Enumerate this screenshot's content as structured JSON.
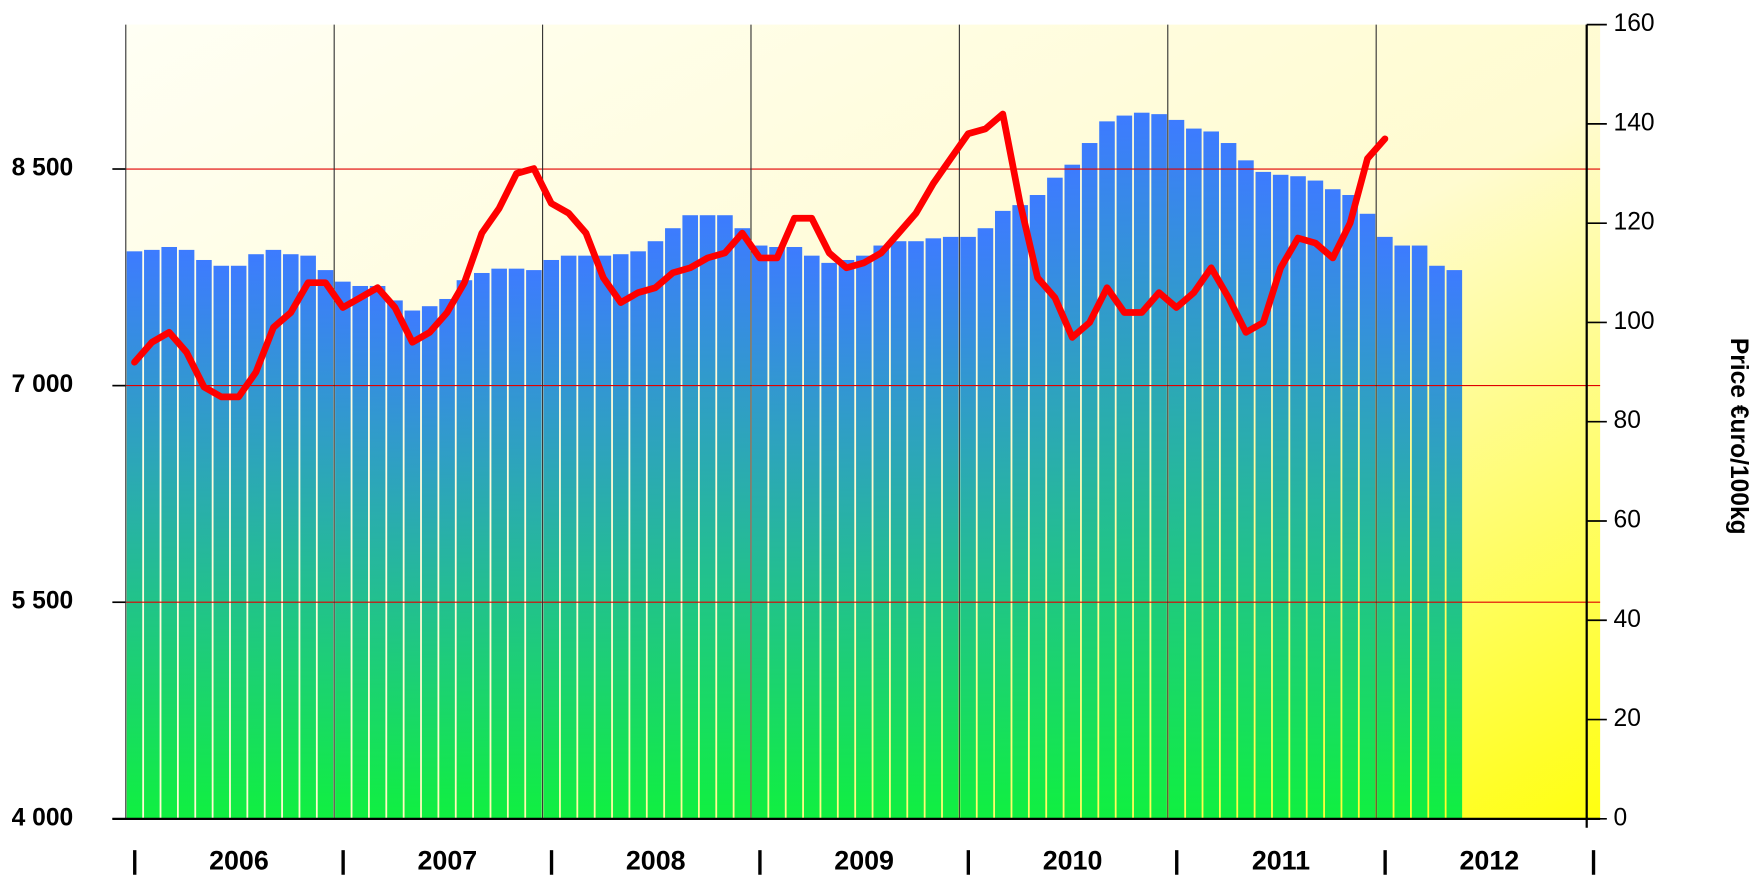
{
  "chart_data": {
    "type": "bar_line",
    "categories": [
      "2006",
      "2007",
      "2008",
      "2009",
      "2010",
      "2011",
      "2012"
    ],
    "series": [
      {
        "type": "bar",
        "color": [
          "#3d7bff",
          "#10f040"
        ],
        "values": [
          [
            7930,
            7940,
            7960,
            7940,
            7870,
            7830,
            7830,
            7910,
            7940,
            7910,
            7900,
            7800
          ],
          [
            7720,
            7690,
            7690,
            7590,
            7520,
            7550,
            7600,
            7730,
            7780,
            7810,
            7810,
            7800
          ],
          [
            7870,
            7900,
            7900,
            7900,
            7910,
            7930,
            8000,
            8090,
            8180,
            8180,
            8180,
            8090
          ],
          [
            7970,
            7960,
            7960,
            7900,
            7850,
            7870,
            7900,
            7970,
            8000,
            8000,
            8020,
            8030
          ],
          [
            8030,
            8090,
            8210,
            8250,
            8320,
            8440,
            8530,
            8680,
            8830,
            8870,
            8890,
            8880
          ],
          [
            8840,
            8780,
            8760,
            8680,
            8560,
            8480,
            8460,
            8450,
            8420,
            8360,
            8320,
            8190
          ],
          [
            8030,
            7970,
            7970,
            7830,
            7800
          ]
        ]
      },
      {
        "type": "line",
        "axis": "y2",
        "color": "#ff0000",
        "values": [
          [
            92,
            96,
            98,
            94,
            87,
            85,
            85,
            90,
            99,
            102,
            108,
            108
          ],
          [
            103,
            105,
            107,
            103,
            96,
            98,
            102,
            108,
            118,
            123,
            130,
            131
          ],
          [
            124,
            122,
            118,
            109,
            104,
            106,
            107,
            110,
            111,
            113,
            114,
            118
          ],
          [
            113,
            113,
            121,
            121,
            114,
            111,
            112,
            114,
            118,
            122,
            128,
            133
          ],
          [
            138,
            139,
            142,
            124,
            109,
            105,
            97,
            100,
            107,
            102,
            102,
            106
          ],
          [
            103,
            106,
            111,
            105,
            98,
            100,
            111,
            117,
            116,
            113,
            120,
            133
          ],
          [
            137
          ]
        ]
      }
    ],
    "ylim": [
      4000,
      9500
    ],
    "yticks": [
      {
        "value": 4000,
        "label": "4 000"
      },
      {
        "value": 5500,
        "label": "5 500"
      },
      {
        "value": 7000,
        "label": "7 000"
      },
      {
        "value": 8500,
        "label": "8 500"
      }
    ],
    "y2lim": [
      0,
      160
    ],
    "y2ticks": [
      0,
      20,
      40,
      60,
      80,
      100,
      120,
      140,
      160
    ],
    "y2label": "Price €uro/100kg",
    "grid": true,
    "grid_color": "#e00000"
  }
}
